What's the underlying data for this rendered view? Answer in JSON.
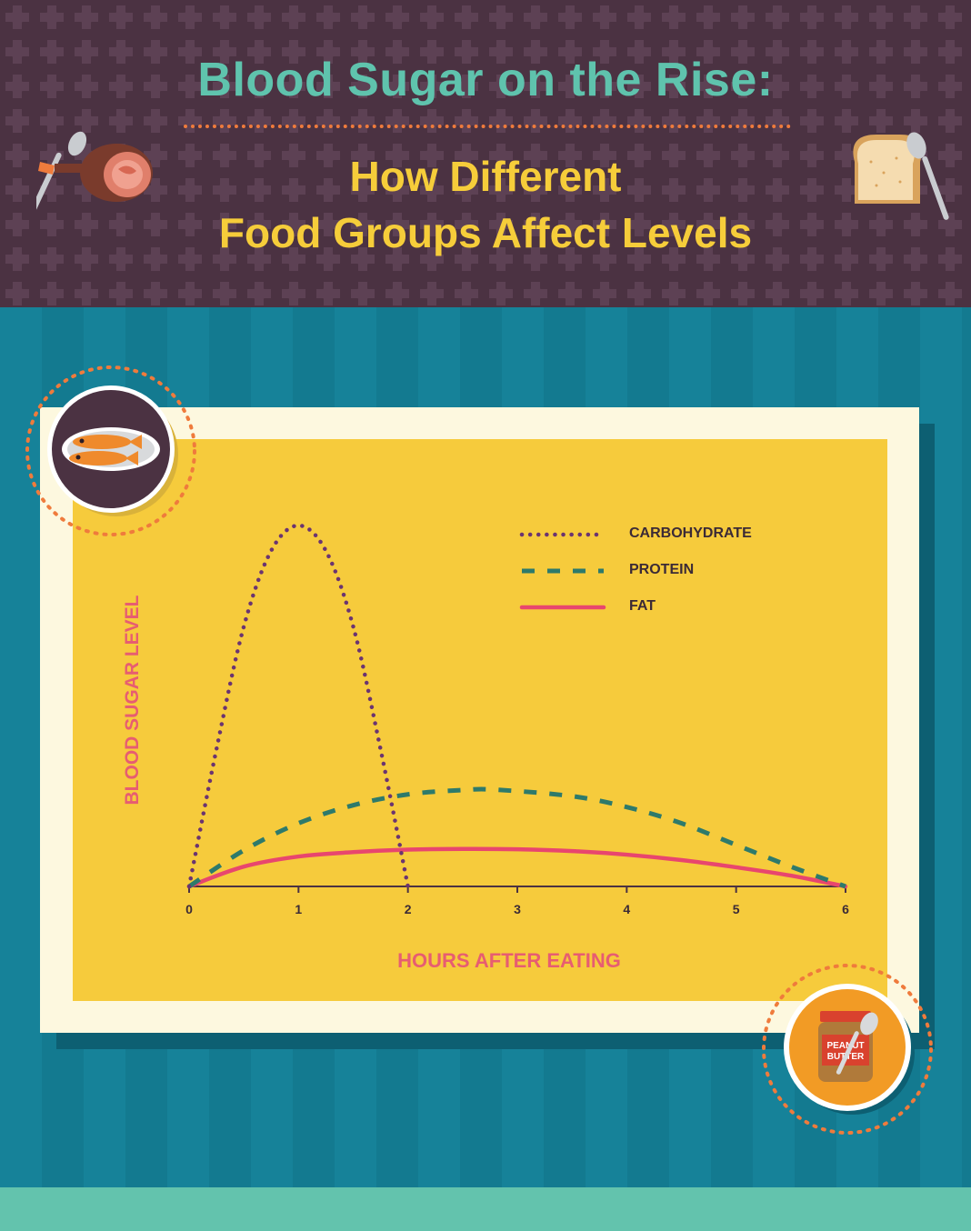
{
  "header": {
    "title": "Blood Sugar on the Rise:",
    "subtitle_line1": "How Different",
    "subtitle_line2": "Food Groups Affect Levels"
  },
  "icons": {
    "top_left": "ham-and-spoon-icon",
    "top_right": "bread-and-spoon-icon",
    "badge_left": "fish-plate-icon",
    "badge_right": "peanut-butter-jar-icon"
  },
  "badge_right_label": {
    "line1": "PEANUT",
    "line2": "BUTTER"
  },
  "colors": {
    "header_bg": "#4b3242",
    "title": "#5fc3ad",
    "subtitle": "#f6cd3a",
    "accent_dots": "#ef7b3c",
    "teal_bg": "#168197",
    "plot_bg": "#f6cb3c",
    "axis_label": "#e75d71",
    "carbohydrate": "#6b3470",
    "protein": "#2e7a6b",
    "fat": "#e8466e"
  },
  "chart_data": {
    "type": "line",
    "title": "",
    "xlabel": "HOURS AFTER EATING",
    "ylabel": "BLOOD SUGAR LEVEL",
    "xlim": [
      0,
      6
    ],
    "xticks": [
      "0",
      "1",
      "2",
      "3",
      "4",
      "5",
      "6"
    ],
    "ylim": [
      0,
      100
    ],
    "grid": false,
    "legend_position": "top-right",
    "series": [
      {
        "name": "CARBOHYDRATE",
        "style": "dotted",
        "color": "#6b3470",
        "x": [
          0,
          0.25,
          0.5,
          0.75,
          1.0,
          1.25,
          1.5,
          1.75,
          2.0
        ],
        "y": [
          0,
          38,
          72,
          93,
          100,
          93,
          72,
          38,
          0
        ]
      },
      {
        "name": "PROTEIN",
        "style": "dashed",
        "color": "#2e7a6b",
        "x": [
          0,
          0.5,
          1.0,
          1.5,
          2.0,
          2.5,
          2.8,
          3.5,
          4.0,
          4.5,
          5.0,
          5.5,
          6.0
        ],
        "y": [
          0,
          10,
          17.5,
          22.5,
          25.5,
          26.7,
          26.8,
          25,
          22,
          17.5,
          11.5,
          5.5,
          0
        ]
      },
      {
        "name": "FAT",
        "style": "solid",
        "color": "#e8466e",
        "x": [
          0,
          0.5,
          1.0,
          1.5,
          2.0,
          2.5,
          3.0,
          3.5,
          4.0,
          4.5,
          5.0,
          5.5,
          6.0
        ],
        "y": [
          0,
          5.5,
          8.3,
          9.5,
          10.2,
          10.4,
          10.3,
          9.8,
          8.8,
          7.3,
          5.3,
          3,
          0
        ]
      }
    ]
  }
}
